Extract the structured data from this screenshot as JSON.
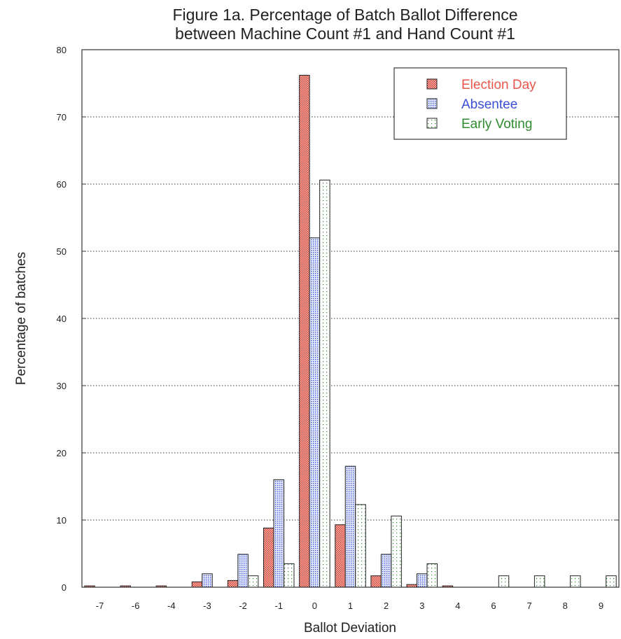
{
  "chart_data": {
    "type": "bar",
    "title": [
      "Figure 1a.  Percentage of Batch Ballot Difference",
      "between Machine Count #1 and Hand Count #1"
    ],
    "xlabel": "Ballot Deviation",
    "ylabel": "Percentage of batches",
    "ylim": [
      0,
      80
    ],
    "yticks": [
      "0",
      "10",
      "20",
      "30",
      "40",
      "50",
      "60",
      "70",
      "80"
    ],
    "categories": [
      "-7",
      "-6",
      "-4",
      "-3",
      "-2",
      "-1",
      "0",
      "1",
      "2",
      "3",
      "4",
      "6",
      "7",
      "8",
      "9"
    ],
    "grid": "horizontal dotted",
    "legend_position": "top-right",
    "series": [
      {
        "name": "Election Day",
        "color": "#e8574a",
        "pattern": "dense-dots",
        "values": [
          0.2,
          0.2,
          0.2,
          0.8,
          1.0,
          8.8,
          76.2,
          9.3,
          1.7,
          0.4,
          0.2,
          0,
          0,
          0,
          0
        ]
      },
      {
        "name": "Absentee",
        "color": "#3a4fd8",
        "pattern": "dots",
        "values": [
          0,
          0,
          0,
          2.0,
          4.9,
          16.0,
          52.0,
          18.0,
          4.9,
          2.0,
          0,
          0,
          0,
          0,
          0
        ]
      },
      {
        "name": "Early Voting",
        "color": "#2e8b2e",
        "pattern": "sparse-dots",
        "values": [
          0,
          0,
          0,
          0,
          1.7,
          3.5,
          60.6,
          12.3,
          10.6,
          3.5,
          0,
          1.7,
          1.7,
          1.7,
          1.7
        ]
      }
    ]
  }
}
